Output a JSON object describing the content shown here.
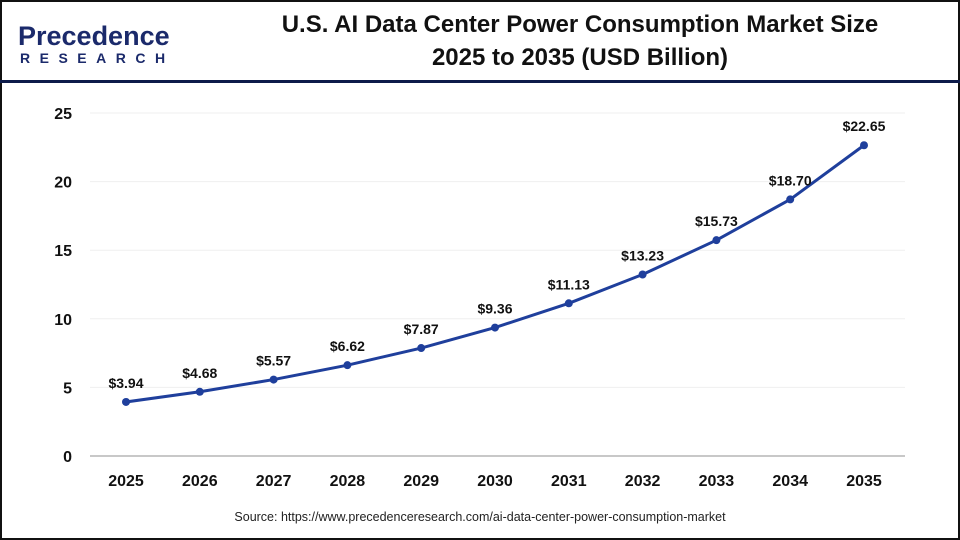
{
  "logo": {
    "main": "Precedence",
    "sub": "RESEARCH"
  },
  "title": {
    "line1": "U.S. AI Data Center Power Consumption Market Size",
    "line2": "2025 to 2035 (USD Billion)"
  },
  "source": "Source: https://www.precedenceresearch.com/ai-data-center-power-consumption-market",
  "chart_data": {
    "type": "line",
    "categories": [
      "2025",
      "2026",
      "2027",
      "2028",
      "2029",
      "2030",
      "2031",
      "2032",
      "2033",
      "2034",
      "2035"
    ],
    "values": [
      3.94,
      4.68,
      5.57,
      6.62,
      7.87,
      9.36,
      11.13,
      13.23,
      15.73,
      18.7,
      22.65
    ],
    "data_labels": [
      "$3.94",
      "$4.68",
      "$5.57",
      "$6.62",
      "$7.87",
      "$9.36",
      "$11.13",
      "$13.23",
      "$15.73",
      "$18.70",
      "$22.65"
    ],
    "ylim": [
      0,
      25
    ],
    "yticks": [
      0,
      5,
      10,
      15,
      20,
      25
    ],
    "grid": true,
    "line_color": "#1f3f9c",
    "xlabel": "",
    "ylabel": ""
  }
}
